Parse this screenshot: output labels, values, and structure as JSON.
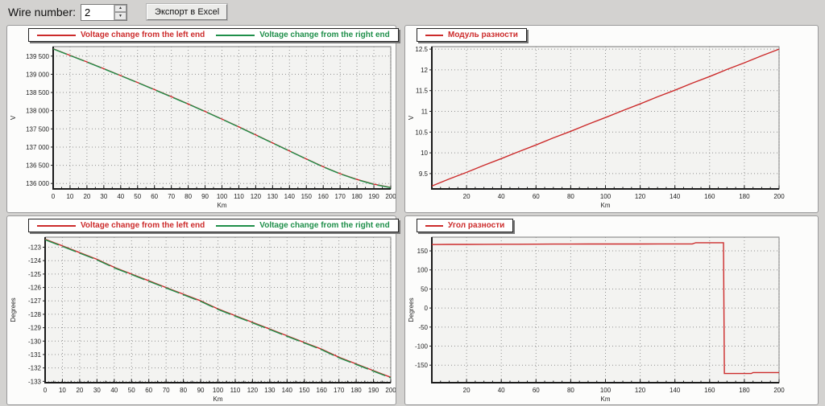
{
  "page": {
    "background": "#d3d2d0"
  },
  "toolbar": {
    "wire_number_label": "Wire number:",
    "wire_number_value": "2",
    "spin_up": "▲",
    "spin_down": "▼",
    "export_button_label": "Экспорт в Excel"
  },
  "colors": {
    "red": "#d43d3d",
    "green": "#2f9356",
    "plot_bg": "#f3f3f1",
    "grid": "#909090",
    "axis": "#1a1a1a"
  },
  "chart_data": [
    {
      "id": "voltage-top-left",
      "type": "line",
      "title": "",
      "xlabel": "Km",
      "ylabel": "V",
      "grid": true,
      "legend_position": "top-left",
      "xlim": [
        0,
        200
      ],
      "ylim": [
        135850,
        139760
      ],
      "xticks": {
        "values": [
          0,
          10,
          20,
          30,
          40,
          50,
          60,
          70,
          80,
          90,
          100,
          110,
          120,
          130,
          140,
          150,
          160,
          170,
          180,
          190,
          200
        ],
        "labels": [
          "0",
          "10",
          "20",
          "30",
          "40",
          "50",
          "60",
          "70",
          "80",
          "90",
          "100",
          "110",
          "120",
          "130",
          "140",
          "150",
          "160",
          "170",
          "180",
          "190",
          "200"
        ]
      },
      "xminor_step": 5,
      "yticks": {
        "values": [
          139500,
          139000,
          138500,
          138000,
          137500,
          137000,
          136500,
          136000
        ],
        "labels": [
          "139 500",
          "139 000",
          "138 500",
          "138 000",
          "137 500",
          "137 000",
          "136 500",
          "136 000"
        ]
      },
      "x": [
        0,
        10,
        20,
        30,
        40,
        50,
        60,
        70,
        80,
        90,
        100,
        110,
        120,
        130,
        140,
        150,
        160,
        170,
        180,
        190,
        200
      ],
      "series": [
        {
          "name": "Voltage change from the left end",
          "color": "#cc2b2b",
          "values": [
            139700,
            139520,
            139340,
            139155,
            138965,
            138775,
            138580,
            138385,
            138185,
            137980,
            137770,
            137555,
            137335,
            137115,
            136895,
            136675,
            136460,
            136270,
            136110,
            135980,
            135890
          ]
        },
        {
          "name": "Voltage change from the right end",
          "color": "#1f8f4a",
          "dash": "18 5",
          "values": [
            139695,
            139515,
            139335,
            139150,
            138960,
            138770,
            138575,
            138380,
            138180,
            137975,
            137765,
            137550,
            137330,
            137110,
            136890,
            136670,
            136455,
            136265,
            136105,
            135975,
            135885
          ]
        }
      ],
      "layout": {
        "margins": {
          "l": 57,
          "t": 26,
          "r": 6,
          "b": 29
        }
      }
    },
    {
      "id": "modulus-top-right",
      "type": "line",
      "title": "",
      "xlabel": "Km",
      "ylabel": "V",
      "grid": true,
      "legend_position": "top-left",
      "xlim": [
        0,
        200
      ],
      "ylim": [
        9.13,
        12.56
      ],
      "xticks": {
        "values": [
          20,
          40,
          60,
          80,
          100,
          120,
          140,
          160,
          180,
          200
        ],
        "labels": [
          "20",
          "40",
          "60",
          "80",
          "100",
          "120",
          "140",
          "160",
          "180",
          "200"
        ]
      },
      "xminor_step": 5,
      "yticks": {
        "values": [
          12.5,
          12,
          11.5,
          11,
          10.5,
          10,
          9.5
        ],
        "labels": [
          "12.5",
          "12",
          "11.5",
          "11",
          "10.5",
          "10",
          "9.5"
        ]
      },
      "x": [
        0,
        10,
        20,
        30,
        40,
        50,
        60,
        70,
        80,
        90,
        100,
        110,
        120,
        130,
        140,
        150,
        160,
        170,
        180,
        190,
        200
      ],
      "series": [
        {
          "name": "Модуль разности",
          "color": "#cc2b2b",
          "values": [
            9.2,
            9.37,
            9.53,
            9.7,
            9.86,
            10.03,
            10.19,
            10.36,
            10.52,
            10.69,
            10.85,
            11.02,
            11.18,
            11.35,
            11.51,
            11.68,
            11.84,
            12.01,
            12.17,
            12.34,
            12.5
          ]
        }
      ],
      "layout": {
        "margins": {
          "l": 33,
          "t": 26,
          "r": 48,
          "b": 29
        }
      }
    },
    {
      "id": "angle-bottom-left",
      "type": "line",
      "title": "",
      "xlabel": "Km",
      "ylabel": "Degrees",
      "grid": true,
      "legend_position": "top-left",
      "xlim": [
        0,
        200
      ],
      "ylim": [
        -133.1,
        -122.25
      ],
      "xticks": {
        "values": [
          0,
          10,
          20,
          30,
          40,
          50,
          60,
          70,
          80,
          90,
          100,
          110,
          120,
          130,
          140,
          150,
          160,
          170,
          180,
          190,
          200
        ],
        "labels": [
          "0",
          "10",
          "20",
          "30",
          "40",
          "50",
          "60",
          "70",
          "80",
          "90",
          "100",
          "110",
          "120",
          "130",
          "140",
          "150",
          "160",
          "170",
          "180",
          "190",
          "200"
        ]
      },
      "xminor_step": 5,
      "yticks": {
        "values": [
          -123,
          -124,
          -125,
          -126,
          -127,
          -128,
          -129,
          -130,
          -131,
          -132,
          -133
        ],
        "labels": [
          "-123",
          "-124",
          "-125",
          "-126",
          "-127",
          "-128",
          "-129",
          "-130",
          "-131",
          "-132",
          "-133"
        ]
      },
      "x": [
        0,
        10,
        20,
        30,
        40,
        50,
        60,
        70,
        80,
        90,
        100,
        110,
        120,
        130,
        140,
        150,
        160,
        170,
        180,
        190,
        200
      ],
      "series": [
        {
          "name": "Voltage change from the left end",
          "color": "#cc2b2b",
          "values": [
            -122.4,
            -122.9,
            -123.4,
            -123.9,
            -124.5,
            -125.0,
            -125.5,
            -126.0,
            -126.5,
            -127.0,
            -127.6,
            -128.1,
            -128.6,
            -129.1,
            -129.6,
            -130.1,
            -130.6,
            -131.2,
            -131.7,
            -132.2,
            -132.7
          ]
        },
        {
          "name": "Voltage change from the right end",
          "color": "#1f8f4a",
          "dash": "18 5",
          "values": [
            -122.44,
            -122.94,
            -123.44,
            -123.94,
            -124.54,
            -125.04,
            -125.54,
            -126.04,
            -126.54,
            -127.04,
            -127.64,
            -128.14,
            -128.64,
            -129.14,
            -129.64,
            -130.14,
            -130.64,
            -131.24,
            -131.74,
            -132.24,
            -132.74
          ]
        }
      ],
      "layout": {
        "margins": {
          "l": 47,
          "t": 26,
          "r": 6,
          "b": 27
        }
      }
    },
    {
      "id": "angle-bottom-right",
      "type": "line",
      "title": "",
      "xlabel": "Km",
      "ylabel": "Degrees",
      "grid": true,
      "legend_position": "top-left",
      "xlim": [
        0,
        200
      ],
      "ylim": [
        -196,
        186
      ],
      "xticks": {
        "values": [
          20,
          40,
          60,
          80,
          100,
          120,
          140,
          160,
          180,
          200
        ],
        "labels": [
          "20",
          "40",
          "60",
          "80",
          "100",
          "120",
          "140",
          "160",
          "180",
          "200"
        ]
      },
      "xminor_step": 5,
      "yticks": {
        "values": [
          150,
          100,
          50,
          0,
          -50,
          -100,
          -150
        ],
        "labels": [
          "150",
          "100",
          "50",
          "0",
          "-50",
          "-100",
          "-150"
        ]
      },
      "x": [
        0,
        10,
        20,
        30,
        40,
        50,
        60,
        70,
        80,
        90,
        100,
        110,
        120,
        130,
        140,
        150,
        152,
        168,
        168.5,
        170,
        184,
        185,
        200
      ],
      "series": [
        {
          "name": "Угол разности",
          "color": "#cc2b2b",
          "values": [
            166.5,
            167,
            167,
            167.2,
            167.4,
            167.5,
            167.6,
            167.8,
            167.9,
            168,
            168,
            168,
            168,
            168.2,
            168.3,
            168.3,
            171.5,
            171.5,
            -172,
            -172,
            -172,
            -169.5,
            -169.5
          ]
        }
      ],
      "layout": {
        "margins": {
          "l": 33,
          "t": 26,
          "r": 48,
          "b": 27
        }
      }
    }
  ]
}
